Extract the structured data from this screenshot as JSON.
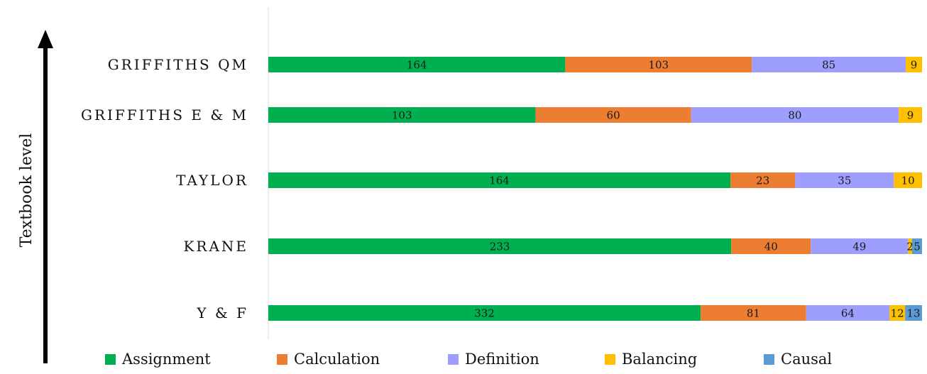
{
  "chart_data": {
    "type": "bar",
    "orientation": "horizontal",
    "stacked": true,
    "normalized": true,
    "ylabel": "Textbook level",
    "categories": [
      "GRIFFITHS QM",
      "GRIFFITHS E & M",
      "TAYLOR",
      "KRANE",
      "Y & F"
    ],
    "series": [
      {
        "name": "Assignment",
        "color": "#00b050",
        "values": [
          164,
          103,
          164,
          233,
          332
        ]
      },
      {
        "name": "Calculation",
        "color": "#ed7d31",
        "values": [
          103,
          60,
          23,
          40,
          81
        ]
      },
      {
        "name": "Definition",
        "color": "#9e9eff",
        "values": [
          85,
          80,
          35,
          49,
          64
        ]
      },
      {
        "name": "Balancing",
        "color": "#ffc000",
        "values": [
          9,
          9,
          10,
          2,
          12
        ]
      },
      {
        "name": "Causal",
        "color": "#5b9bd5",
        "values": [
          0,
          0,
          0,
          5,
          13
        ]
      }
    ],
    "legend_position": "bottom",
    "grid": false
  }
}
